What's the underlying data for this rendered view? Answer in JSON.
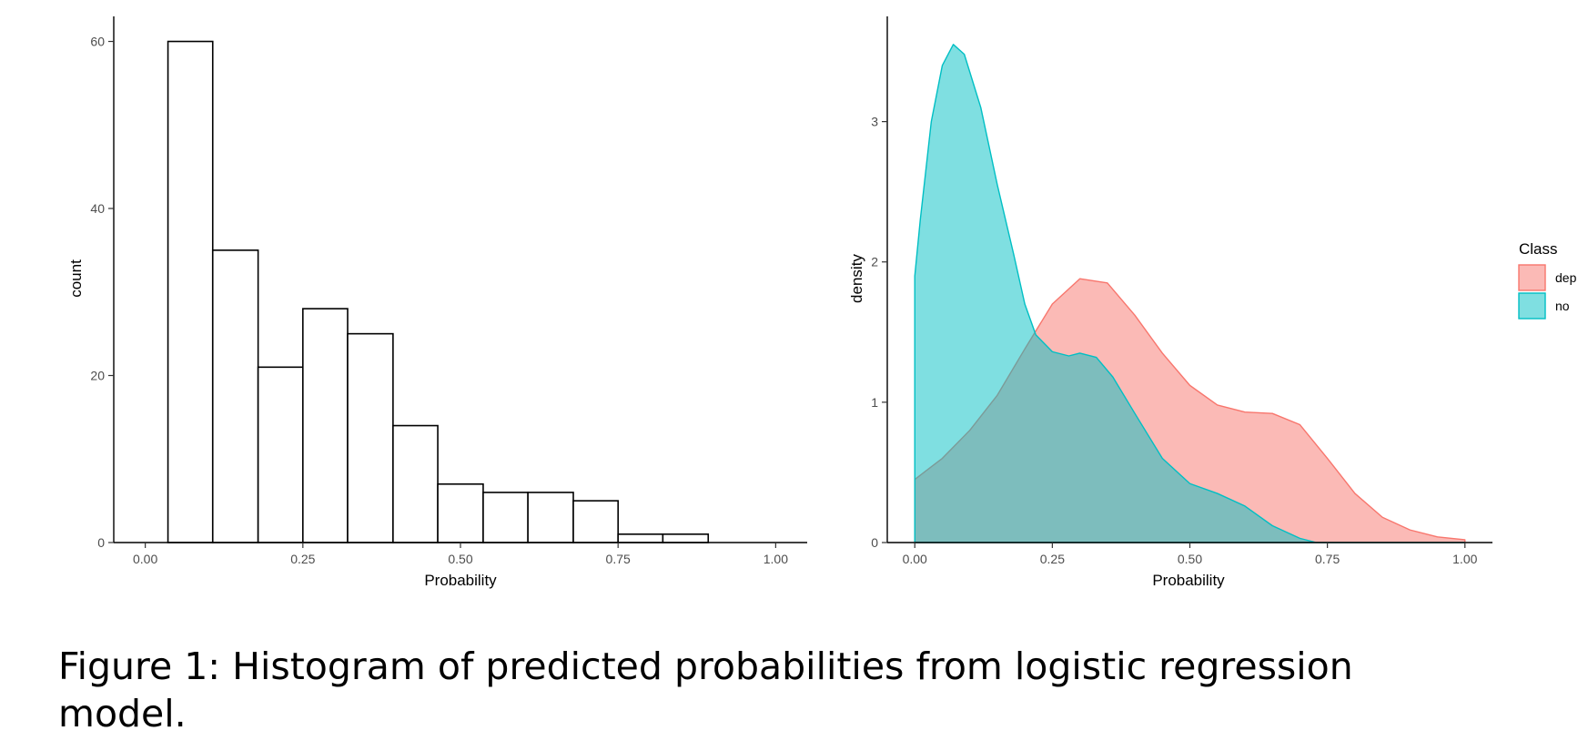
{
  "caption": "Figure 1: Histogram of predicted probabilities from logistic regression model.",
  "chart_data": [
    {
      "type": "bar",
      "title": "",
      "xlabel": "Probability",
      "ylabel": "count",
      "xlim": [
        -0.05,
        1.05
      ],
      "ylim": [
        0,
        63
      ],
      "x_ticks": [
        0.0,
        0.25,
        0.5,
        0.75,
        1.0
      ],
      "x_tick_labels": [
        "0.00",
        "0.25",
        "0.50",
        "0.75",
        "1.00"
      ],
      "y_ticks": [
        0,
        20,
        40,
        60
      ],
      "y_tick_labels": [
        "0",
        "20",
        "40",
        "60"
      ],
      "grid": false,
      "bar_fill": "#ffffff",
      "bar_outline": "#000000",
      "bins": [
        {
          "x0": 0.036,
          "x1": 0.107,
          "count": 60
        },
        {
          "x0": 0.107,
          "x1": 0.179,
          "count": 35
        },
        {
          "x0": 0.179,
          "x1": 0.25,
          "count": 21
        },
        {
          "x0": 0.25,
          "x1": 0.321,
          "count": 28
        },
        {
          "x0": 0.321,
          "x1": 0.393,
          "count": 25
        },
        {
          "x0": 0.393,
          "x1": 0.464,
          "count": 14
        },
        {
          "x0": 0.464,
          "x1": 0.536,
          "count": 7
        },
        {
          "x0": 0.536,
          "x1": 0.607,
          "count": 6
        },
        {
          "x0": 0.607,
          "x1": 0.679,
          "count": 6
        },
        {
          "x0": 0.679,
          "x1": 0.75,
          "count": 5
        },
        {
          "x0": 0.75,
          "x1": 0.821,
          "count": 1
        },
        {
          "x0": 0.821,
          "x1": 0.893,
          "count": 1
        },
        {
          "x0": 0.893,
          "x1": 0.964,
          "count": 0
        }
      ]
    },
    {
      "type": "area",
      "title": "",
      "xlabel": "Probability",
      "ylabel": "density",
      "xlim": [
        -0.05,
        1.05
      ],
      "ylim": [
        0,
        3.75
      ],
      "x_ticks": [
        0.0,
        0.25,
        0.5,
        0.75,
        1.0
      ],
      "x_tick_labels": [
        "0.00",
        "0.25",
        "0.50",
        "0.75",
        "1.00"
      ],
      "y_ticks": [
        0,
        1,
        2,
        3
      ],
      "y_tick_labels": [
        "0",
        "1",
        "2",
        "3"
      ],
      "grid": false,
      "legend": {
        "title": "Class",
        "position": "right"
      },
      "series": [
        {
          "name": "dep",
          "fill": "#F8766D",
          "line": "#F8766D",
          "fill_opacity": 0.5,
          "points": [
            [
              0.0,
              0.45
            ],
            [
              0.05,
              0.6
            ],
            [
              0.1,
              0.8
            ],
            [
              0.15,
              1.05
            ],
            [
              0.2,
              1.38
            ],
            [
              0.25,
              1.7
            ],
            [
              0.3,
              1.88
            ],
            [
              0.35,
              1.85
            ],
            [
              0.4,
              1.62
            ],
            [
              0.45,
              1.35
            ],
            [
              0.5,
              1.12
            ],
            [
              0.55,
              0.98
            ],
            [
              0.6,
              0.93
            ],
            [
              0.65,
              0.92
            ],
            [
              0.7,
              0.84
            ],
            [
              0.75,
              0.6
            ],
            [
              0.8,
              0.35
            ],
            [
              0.85,
              0.18
            ],
            [
              0.9,
              0.09
            ],
            [
              0.95,
              0.04
            ],
            [
              1.0,
              0.02
            ]
          ]
        },
        {
          "name": "no",
          "fill": "#00BFC4",
          "line": "#00BFC4",
          "fill_opacity": 0.5,
          "points": [
            [
              0.0,
              1.9
            ],
            [
              0.01,
              2.3
            ],
            [
              0.03,
              3.0
            ],
            [
              0.05,
              3.4
            ],
            [
              0.07,
              3.55
            ],
            [
              0.09,
              3.48
            ],
            [
              0.12,
              3.1
            ],
            [
              0.15,
              2.55
            ],
            [
              0.18,
              2.05
            ],
            [
              0.2,
              1.7
            ],
            [
              0.22,
              1.48
            ],
            [
              0.25,
              1.36
            ],
            [
              0.28,
              1.33
            ],
            [
              0.3,
              1.35
            ],
            [
              0.33,
              1.32
            ],
            [
              0.36,
              1.18
            ],
            [
              0.4,
              0.92
            ],
            [
              0.45,
              0.6
            ],
            [
              0.5,
              0.42
            ],
            [
              0.55,
              0.35
            ],
            [
              0.6,
              0.26
            ],
            [
              0.65,
              0.12
            ],
            [
              0.7,
              0.03
            ],
            [
              0.73,
              0.0
            ],
            [
              0.8,
              0.0
            ],
            [
              0.9,
              0.0
            ],
            [
              1.0,
              0.0
            ]
          ]
        }
      ]
    }
  ]
}
